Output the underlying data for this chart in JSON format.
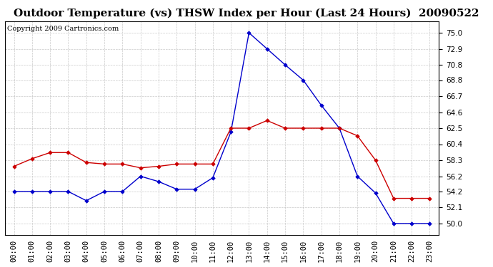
{
  "title": "Outdoor Temperature (vs) THSW Index per Hour (Last 24 Hours)  20090522",
  "copyright": "Copyright 2009 Cartronics.com",
  "hours": [
    "00:00",
    "01:00",
    "02:00",
    "03:00",
    "04:00",
    "05:00",
    "06:00",
    "07:00",
    "08:00",
    "09:00",
    "10:00",
    "11:00",
    "12:00",
    "13:00",
    "14:00",
    "15:00",
    "16:00",
    "17:00",
    "18:00",
    "19:00",
    "20:00",
    "21:00",
    "22:00",
    "23:00"
  ],
  "temp_red": [
    57.5,
    58.5,
    59.3,
    59.3,
    58.0,
    57.8,
    57.8,
    57.3,
    57.5,
    57.8,
    57.8,
    57.8,
    62.5,
    62.5,
    63.5,
    62.5,
    62.5,
    62.5,
    62.5,
    61.5,
    58.3,
    53.3,
    53.3,
    53.3
  ],
  "thsw_blue": [
    54.2,
    54.2,
    54.2,
    54.2,
    53.0,
    54.2,
    54.2,
    56.2,
    55.5,
    54.5,
    54.5,
    56.0,
    62.0,
    75.0,
    72.9,
    70.8,
    68.8,
    65.5,
    62.5,
    56.2,
    54.0,
    50.0,
    50.0,
    50.0
  ],
  "ylim_min": 48.5,
  "ylim_max": 76.5,
  "yticks": [
    50.0,
    52.1,
    54.2,
    56.2,
    58.3,
    60.4,
    62.5,
    64.6,
    66.7,
    68.8,
    70.8,
    72.9,
    75.0
  ],
  "background_color": "#ffffff",
  "grid_color": "#bbbbbb",
  "red_color": "#cc0000",
  "blue_color": "#0000cc",
  "title_fontsize": 11,
  "copyright_fontsize": 7,
  "tick_fontsize": 7.5
}
